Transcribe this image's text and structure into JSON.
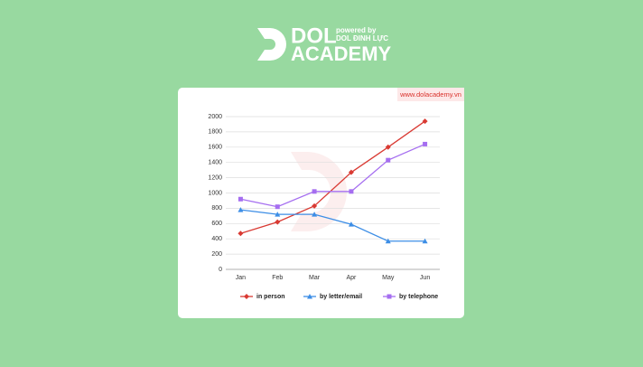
{
  "brand": {
    "name": "DOL",
    "name2": "ACADEMY",
    "powered": "powered by",
    "owner": "DOL ĐINH LỰC",
    "url": "www.dolacademy.vn"
  },
  "chart_data": {
    "type": "line",
    "categories": [
      "Jan",
      "Feb",
      "Mar",
      "Apr",
      "May",
      "Jun"
    ],
    "series": [
      {
        "name": "in person",
        "color": "#d93a33",
        "marker": "diamond",
        "values": [
          470,
          620,
          830,
          1270,
          1600,
          1940
        ]
      },
      {
        "name": "by letter/email",
        "color": "#3d8ee6",
        "marker": "triangle",
        "values": [
          780,
          720,
          720,
          590,
          370,
          370
        ]
      },
      {
        "name": "by telephone",
        "color": "#a56ef0",
        "marker": "square",
        "values": [
          920,
          820,
          1020,
          1020,
          1430,
          1640
        ]
      }
    ],
    "ylim": [
      0,
      2000
    ],
    "yticks": [
      0,
      200,
      400,
      600,
      800,
      1000,
      1200,
      1400,
      1600,
      1800,
      2000
    ],
    "grid": true,
    "legend": "bottom"
  }
}
